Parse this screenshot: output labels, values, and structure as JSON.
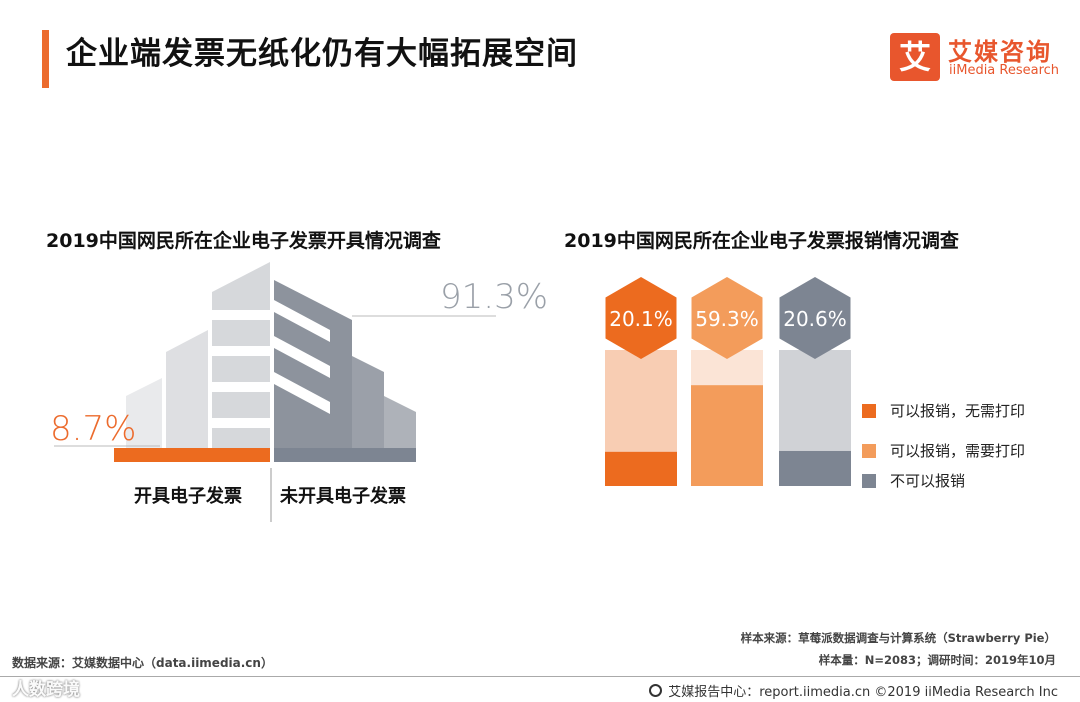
{
  "header": {
    "title": "企业端发票无纸化仍有大幅拓展空间",
    "logo_mark": "艾",
    "logo_cn": "艾媒咨询",
    "logo_en": "iiMedia Research"
  },
  "colors": {
    "accent": "#ec6b2d",
    "orange_dark": "#ec6b1f",
    "orange_mid": "#f39c5b",
    "orange_light": "#f8cdb3",
    "orange_pale": "#fbe4d6",
    "gray_dark": "#7d8592",
    "gray_light": "#d0d2d6"
  },
  "chart_data": [
    {
      "type": "bar",
      "title": "2019中国网民所在企业电子发票开具情况调查",
      "categories": [
        "开具电子发票",
        "未开具电子发票"
      ],
      "values": [
        8.7,
        91.3
      ],
      "value_labels": [
        "8.7%",
        "91.3%"
      ],
      "unit": "%",
      "colors": [
        "#ec6b1f",
        "#7d8592"
      ]
    },
    {
      "type": "bar",
      "title": "2019中国网民所在企业电子发票报销情况调查",
      "categories": [
        "可以报销，无需打印",
        "可以报销，需要打印",
        "不可以报销"
      ],
      "values": [
        20.1,
        59.3,
        20.6
      ],
      "value_labels": [
        "20.1%",
        "59.3%",
        "20.6%"
      ],
      "unit": "%",
      "colors": [
        "#ec6b1f",
        "#f39c5b",
        "#7d8592"
      ],
      "legend": "right"
    }
  ],
  "sources": {
    "sample_source": "样本来源：草莓派数据调查与计算系统（Strawberry Pie）",
    "sample_size": "样本量：N=2083；调研时间：2019年10月",
    "data_source": "数据来源：艾媒数据中心（data.iimedia.cn）"
  },
  "footer": {
    "text": "艾媒报告中心：report.iimedia.cn ©2019  iiMedia Research  Inc",
    "watermark": "人数跨境"
  }
}
